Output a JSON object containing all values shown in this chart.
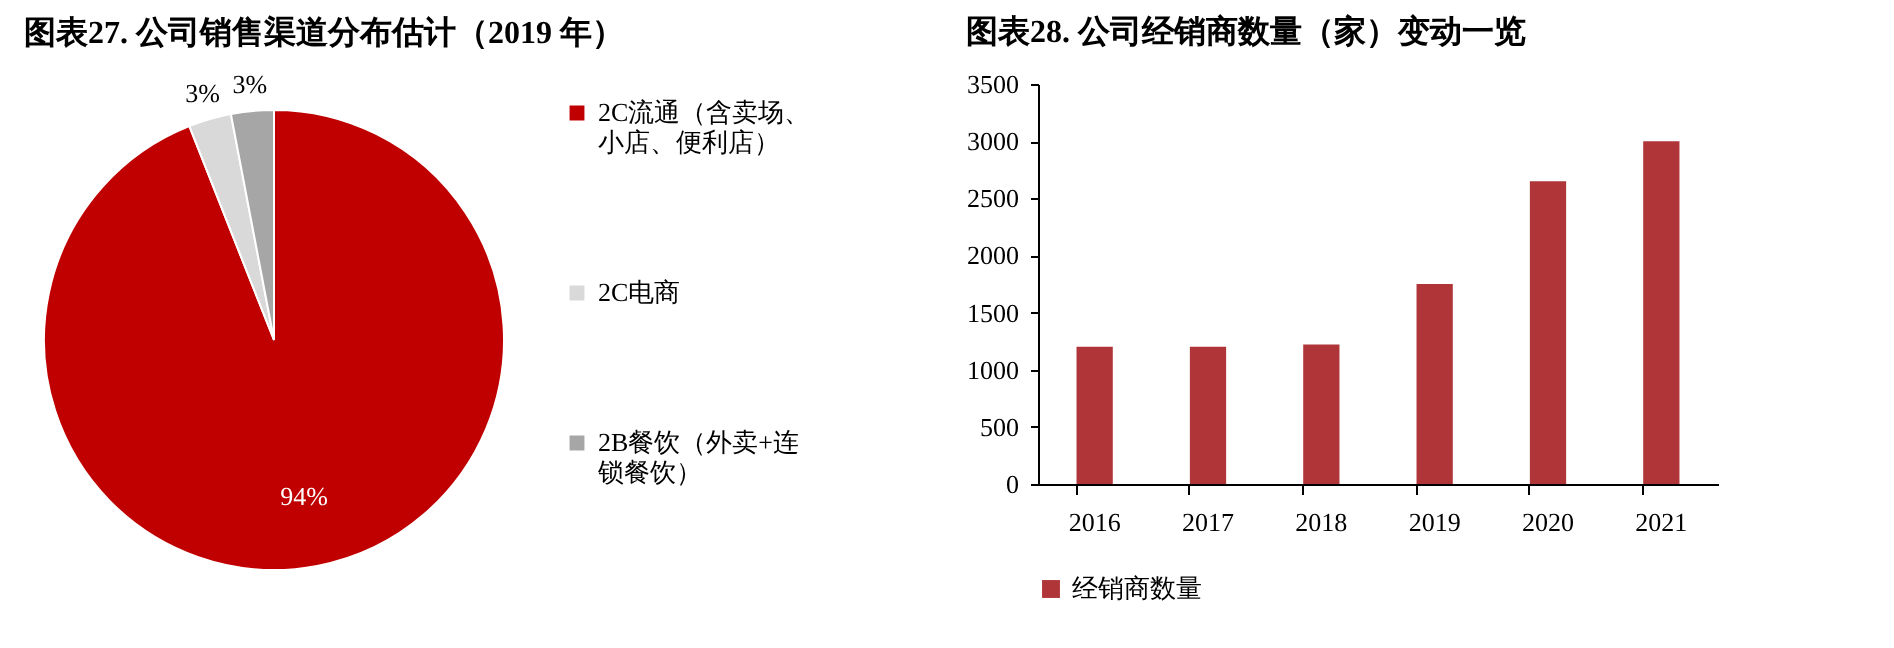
{
  "chart_data": [
    {
      "type": "pie",
      "title": "图表27. 公司销售渠道分布估计（2019 年）",
      "categories": [
        "2C流通（含卖场、小店、便利店）",
        "2C电商",
        "2B餐饮（外卖+连锁餐饮）"
      ],
      "values": [
        94,
        3,
        3
      ],
      "colors": [
        "#c00000",
        "#d9d9d9",
        "#a6a6a6"
      ],
      "value_labels": [
        "94%",
        "3%",
        "3%"
      ],
      "legend": "right"
    },
    {
      "type": "bar",
      "title": "图表28. 公司经销商数量（家）变动一览",
      "categories": [
        "2016",
        "2017",
        "2018",
        "2019",
        "2020",
        "2021"
      ],
      "series": [
        {
          "name": "经销商数量",
          "color": "#b03538",
          "values": [
            1200,
            1200,
            1220,
            1750,
            2650,
            3000
          ]
        }
      ],
      "ylim": [
        0,
        3500
      ],
      "yticks": [
        0,
        500,
        1000,
        1500,
        2000,
        2500,
        3000,
        3500
      ],
      "grid": false,
      "legend": "bottom"
    }
  ]
}
